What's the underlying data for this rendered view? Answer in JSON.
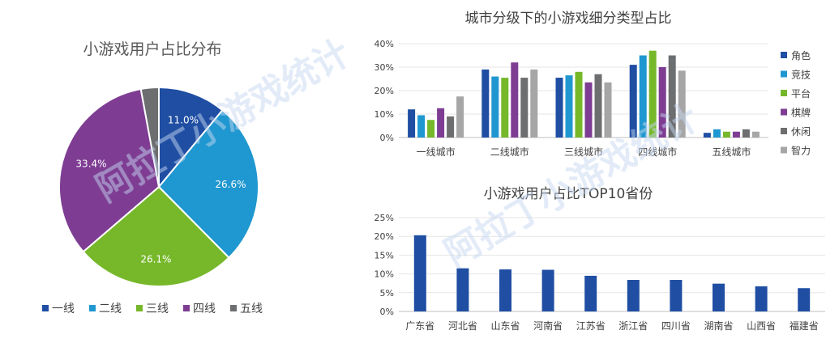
{
  "watermark": {
    "text": "阿拉丁小游戏统计",
    "color": "#c5d6ef"
  },
  "chart_data": [
    {
      "type": "pie",
      "title": "小游戏用户占比分布",
      "categories": [
        "一线",
        "二线",
        "三线",
        "四线",
        "五线"
      ],
      "values": [
        11.0,
        26.6,
        26.1,
        33.4,
        2.9
      ],
      "value_labels": [
        "11.0%",
        "26.6%",
        "26.1%",
        "33.4%",
        ""
      ],
      "colors": [
        "#1f4ea3",
        "#1f97d0",
        "#76b82a",
        "#7e3d93",
        "#6d6e70"
      ],
      "legend_position": "bottom"
    },
    {
      "type": "bar",
      "title": "城市分级下的小游戏细分类型占比",
      "categories": [
        "一线城市",
        "二线城市",
        "三线城市",
        "四线城市",
        "五线城市"
      ],
      "series": [
        {
          "name": "角色",
          "values": [
            12,
            29,
            25.5,
            31,
            2
          ],
          "color": "#1f4ea3"
        },
        {
          "name": "竞技",
          "values": [
            9.5,
            26,
            26.5,
            35,
            3.5
          ],
          "color": "#1f97d0"
        },
        {
          "name": "平台",
          "values": [
            7.5,
            25.5,
            28,
            37,
            2.5
          ],
          "color": "#76b82a"
        },
        {
          "name": "棋牌",
          "values": [
            12.5,
            32,
            23.5,
            30,
            2.5
          ],
          "color": "#7e3d93"
        },
        {
          "name": "休闲",
          "values": [
            9,
            25.5,
            27,
            35,
            3.5
          ],
          "color": "#6d6e70"
        },
        {
          "name": "智力",
          "values": [
            17.5,
            29,
            23.5,
            28.5,
            2.5
          ],
          "color": "#a6a6a6"
        }
      ],
      "ylim": [
        0,
        40
      ],
      "yticks": [
        "0%",
        "10%",
        "20%",
        "30%",
        "40%"
      ],
      "legend_position": "right"
    },
    {
      "type": "bar",
      "title": "小游戏用户占比TOP10省份",
      "categories": [
        "广东省",
        "河北省",
        "山东省",
        "河南省",
        "江苏省",
        "浙江省",
        "四川省",
        "湖南省",
        "山西省",
        "福建省"
      ],
      "values": [
        20.3,
        11.5,
        11.2,
        11.1,
        9.5,
        8.4,
        8.4,
        7.4,
        6.7,
        6.2
      ],
      "color": "#1f4ea3",
      "ylim": [
        0,
        25
      ],
      "yticks": [
        "0%",
        "5%",
        "10%",
        "15%",
        "20%",
        "25%"
      ]
    }
  ]
}
